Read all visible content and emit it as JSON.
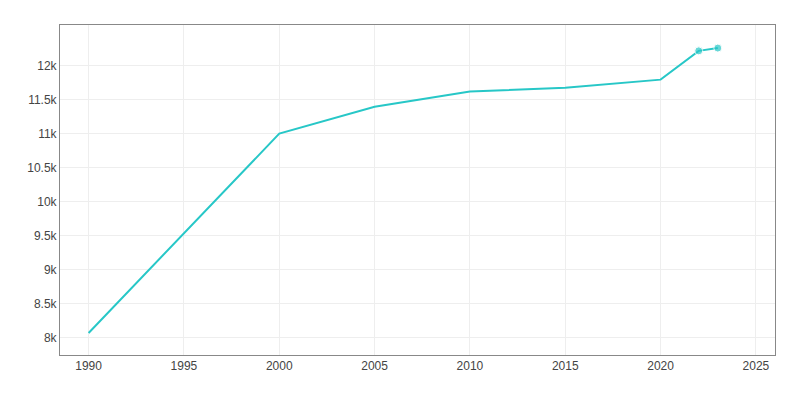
{
  "chart_data": {
    "type": "line",
    "x": [
      1990,
      2000,
      2005,
      2010,
      2015,
      2020,
      2022,
      2023
    ],
    "series": [
      {
        "values": [
          8074,
          11003,
          11398,
          11621,
          11679,
          11797,
          12220,
          12261
        ],
        "color": "#27c7c7",
        "marker": "circle",
        "marker_points": [
          2022,
          2023
        ]
      }
    ],
    "xlim": [
      1988.5,
      2026
    ],
    "ylim": [
      7750,
      12600
    ],
    "xticks": [
      1990,
      1995,
      2000,
      2005,
      2010,
      2015,
      2020,
      2025
    ],
    "yticks": [
      {
        "value": 8000,
        "label": "8k"
      },
      {
        "value": 8500,
        "label": "8.5k"
      },
      {
        "value": 9000,
        "label": "9k"
      },
      {
        "value": 9500,
        "label": "9.5k"
      },
      {
        "value": 10000,
        "label": "10k"
      },
      {
        "value": 10500,
        "label": "10.5k"
      },
      {
        "value": 11000,
        "label": "11k"
      },
      {
        "value": 11500,
        "label": "11.5k"
      },
      {
        "value": 12000,
        "label": "12k"
      }
    ],
    "grid": true
  }
}
